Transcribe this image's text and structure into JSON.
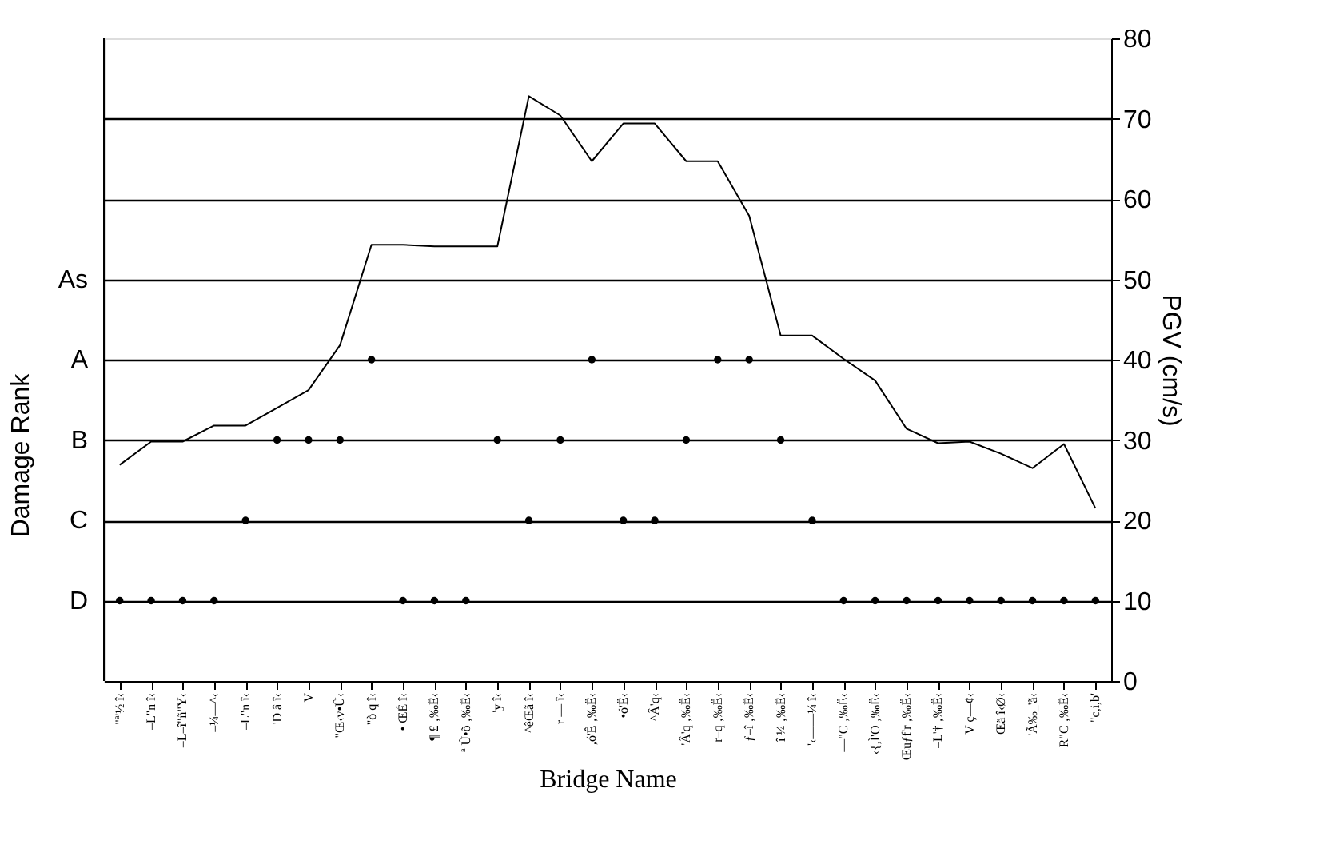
{
  "chart_data": {
    "type": "line",
    "xlabel": "Bridge Name",
    "ylabel": "PGV (cm/s)",
    "categories": [
      "\"ª'½ î‹",
      "–L\"n î‹",
      "–L–î\"ñ\"Y‹",
      "–¼—^‹",
      "–L\"n î‹",
      "'D â î‹",
      "V",
      "\"Œ‹v•Û‹",
      "\"ò q î‹",
      "• ŒÉ î‹",
      "¶ £ ‚‰Ë‹",
      "ª Û•õ ‚‰Ë‹",
      "'y î‹",
      "^êŒã î‹",
      "r — î‹",
      ",ó'Ê ‚‰Ë‹",
      "•ó'Ë‹",
      "^Â'q‹",
      "'Â'q ‚‰Ë‹",
      "r–q ‚‰Ë‹",
      "ƒ–î ‚‰Ë‹",
      "î ¼ ‚‰Ë‹",
      "'‹——¼ î‹",
      "—\"C ‚‰Ë‹",
      "‹{,Ì'O ‚‰Ë‹",
      "Œuƒf'r ‚‰Ë‹",
      "–L'† ‚‰Ë‹",
      "V ç—¢‹",
      "Œä î‹Ø‹",
      "'Ã‰_'ã‹",
      "R\"C ‚‰Ë‹",
      "\"c,i,b'"
    ],
    "series": [
      {
        "type": "scatter",
        "marker": "circle",
        "color": "#000000",
        "values": [
          10,
          10,
          10,
          10,
          20,
          30,
          30,
          30,
          40,
          10,
          10,
          10,
          30,
          20,
          30,
          40,
          20,
          20,
          30,
          40,
          40,
          30,
          20,
          10,
          10,
          10,
          10,
          10,
          10,
          10,
          10,
          10
        ]
      },
      {
        "line_style": "solid",
        "color": "#000000",
        "values": [
          26.9,
          29.8,
          29.8,
          31.8,
          31.8,
          34,
          36.2,
          41.8,
          54.3,
          54.3,
          54.1,
          54.1,
          54.1,
          72.8,
          70.4,
          64.7,
          69.4,
          69.4,
          64.7,
          64.7,
          57.9,
          43,
          43,
          40.1,
          37.4,
          31.4,
          29.6,
          29.8,
          28.3,
          26.5,
          29.5,
          21.5
        ]
      }
    ],
    "ylim": [
      0,
      80
    ],
    "yticks": [
      0,
      10,
      20,
      30,
      40,
      50,
      60,
      70,
      80
    ],
    "annotations": [
      "Damage Rank",
      "D",
      "C",
      "B",
      "A",
      "As"
    ],
    "grid": "y",
    "legend": false
  }
}
